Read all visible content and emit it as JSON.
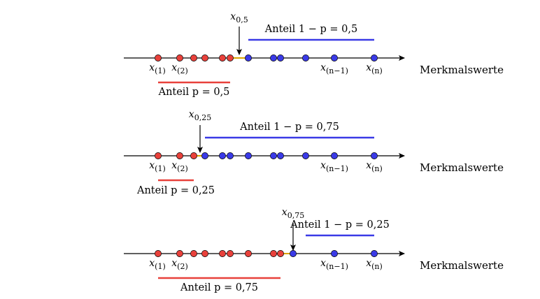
{
  "axis_label": "Merkmalswerte",
  "index_labels": {
    "first": {
      "var": "x",
      "sub": "(1)"
    },
    "second": {
      "var": "x",
      "sub": "(2)"
    },
    "second_last": {
      "var": "x",
      "sub": "(n−1)"
    },
    "last": {
      "var": "x",
      "sub": "(n)"
    }
  },
  "colors": {
    "axis": "#000000",
    "below": "#e8413b",
    "above": "#3a3ae6",
    "quantile_segment": "#d9a400"
  },
  "panels": [
    {
      "quantile_var": "x",
      "quantile_sub": "0,5",
      "p": 0.5,
      "lower_caption": "Anteil p = 0,5",
      "upper_caption": "Anteil 1 − p = 0,5",
      "points": [
        {
          "group": "below"
        },
        {
          "group": "below"
        },
        {
          "group": "below"
        },
        {
          "group": "below"
        },
        {
          "group": "below"
        },
        {
          "group": "below"
        },
        {
          "group": "above"
        },
        {
          "group": "above"
        },
        {
          "group": "above"
        },
        {
          "group": "above"
        },
        {
          "group": "above"
        },
        {
          "group": "above"
        }
      ]
    },
    {
      "quantile_var": "x",
      "quantile_sub": "0,25",
      "p": 0.25,
      "lower_caption": "Anteil p = 0,25",
      "upper_caption": "Anteil 1 − p = 0,75",
      "points": [
        {
          "group": "below"
        },
        {
          "group": "below"
        },
        {
          "group": "below"
        },
        {
          "group": "above"
        },
        {
          "group": "above"
        },
        {
          "group": "above"
        },
        {
          "group": "above"
        },
        {
          "group": "above"
        },
        {
          "group": "above"
        },
        {
          "group": "above"
        },
        {
          "group": "above"
        },
        {
          "group": "above"
        }
      ]
    },
    {
      "quantile_var": "x",
      "quantile_sub": "0,75",
      "p": 0.75,
      "lower_caption": "Anteil p = 0,75",
      "upper_caption": "Anteil 1 − p = 0,25",
      "points": [
        {
          "group": "below"
        },
        {
          "group": "below"
        },
        {
          "group": "below"
        },
        {
          "group": "below"
        },
        {
          "group": "below"
        },
        {
          "group": "below"
        },
        {
          "group": "below"
        },
        {
          "group": "below"
        },
        {
          "group": "below"
        },
        {
          "group": "above"
        },
        {
          "group": "above"
        },
        {
          "group": "above"
        }
      ]
    }
  ]
}
